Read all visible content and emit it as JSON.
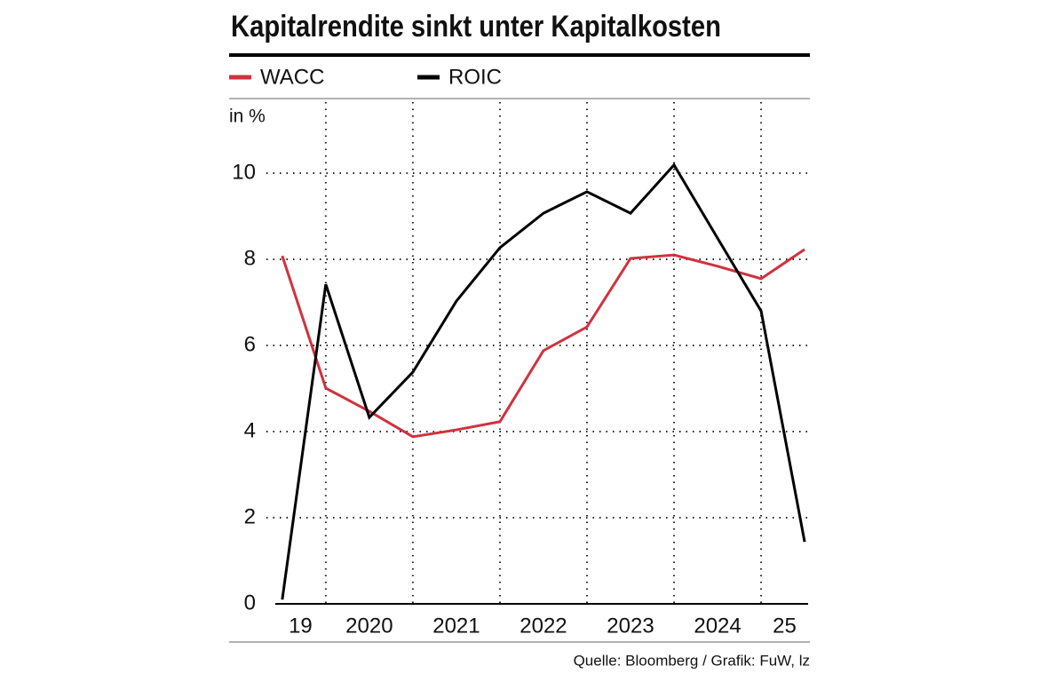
{
  "chart_data": {
    "type": "line",
    "title": "Kapitalrendite sinkt unter Kapitalkosten",
    "y_label": "in %",
    "source": "Quelle: Bloomberg / Grafik: FuW, lz",
    "x": [
      2019.5,
      2020,
      2020.5,
      2021,
      2021.5,
      2022,
      2022.5,
      2023,
      2023.5,
      2024,
      2024.5,
      2025,
      2025.5
    ],
    "xlim": [
      2019.42,
      2025.54
    ],
    "xticks": [
      2020,
      2021,
      2022,
      2023,
      2024,
      2025
    ],
    "year_labels": [
      "19",
      "2020",
      "2021",
      "2022",
      "2023",
      "2024",
      "25"
    ],
    "ylim": [
      0,
      11.65
    ],
    "yticks": [
      0,
      2,
      4,
      6,
      8,
      10
    ],
    "grid": true,
    "series": [
      {
        "name": "WACC",
        "color": "#d0323e",
        "values": [
          8.08,
          5.01,
          4.47,
          3.88,
          4.04,
          4.23,
          5.88,
          6.43,
          8.02,
          8.1,
          7.84,
          7.55,
          8.23
        ]
      },
      {
        "name": "ROIC",
        "color": "#000000",
        "values": [
          0.1,
          7.42,
          4.33,
          5.38,
          7.03,
          8.27,
          9.07,
          9.57,
          9.07,
          10.19,
          8.49,
          6.8,
          1.44
        ]
      }
    ]
  }
}
